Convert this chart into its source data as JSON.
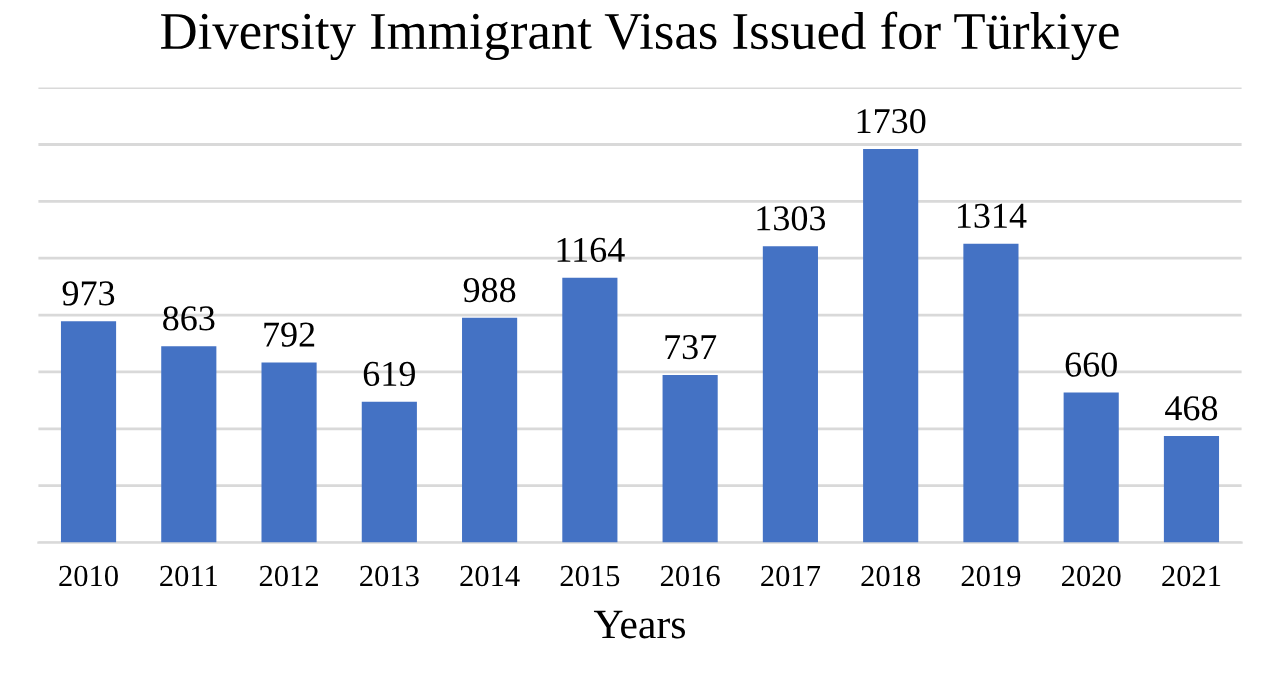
{
  "chart_data": {
    "type": "bar",
    "title": "Diversity Immigrant Visas Issued for Türkiye",
    "xlabel": "Years",
    "categories": [
      "2010",
      "2011",
      "2012",
      "2013",
      "2014",
      "2015",
      "2016",
      "2017",
      "2018",
      "2019",
      "2020",
      "2021"
    ],
    "values": [
      973,
      863,
      792,
      619,
      988,
      1164,
      737,
      1303,
      1730,
      1314,
      660,
      468
    ],
    "color": "#4472c4",
    "data_labels": true,
    "ylim": [
      0,
      2000
    ],
    "yticks": [
      {
        "value": 0,
        "label": null
      },
      {
        "value": 250,
        "label": null
      },
      {
        "value": 500,
        "label": null
      },
      {
        "value": 750,
        "label": null
      },
      {
        "value": 1000,
        "label": null
      },
      {
        "value": 1250,
        "label": null
      },
      {
        "value": 1500,
        "label": null
      },
      {
        "value": 1750,
        "label": null
      },
      {
        "value": 2000,
        "label": null
      }
    ],
    "tick_labels": "x",
    "grid": "y"
  }
}
